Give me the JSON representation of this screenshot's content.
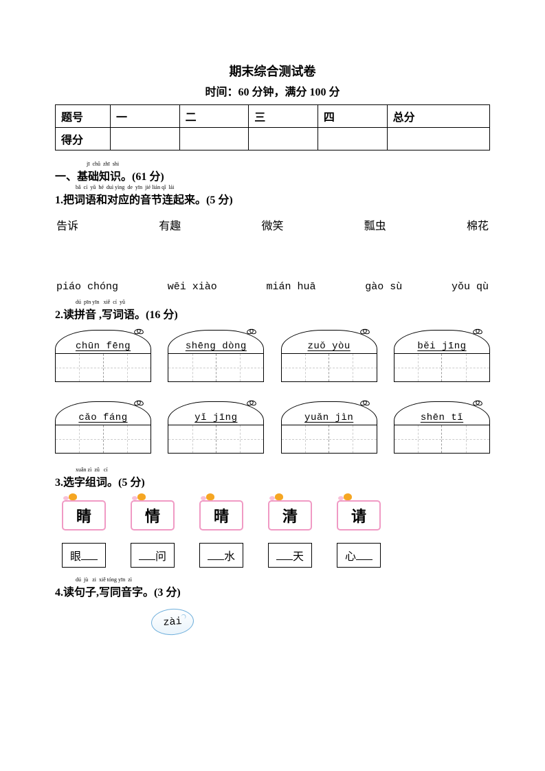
{
  "header": {
    "title": "期末综合测试卷",
    "subtitle_prefix": "时间：",
    "time_value": "60",
    "time_unit": "分钟，满分",
    "total_value": "100",
    "total_unit": "分"
  },
  "score_table": {
    "row1": [
      "题号",
      "一",
      "二",
      "三",
      "四",
      "总分"
    ],
    "row2_label": "得分"
  },
  "section1": {
    "heading_prefix": "一、",
    "heading_text": "基础知识。",
    "heading_points": "(61 分)",
    "heading_pinyin": "       jī  chǔ  zhī  shi"
  },
  "q1": {
    "label": "1.",
    "text": "把词语和对应的音节连起来。",
    "points": "(5 分)",
    "pinyin": "      bǎ  cí  yǔ  hé  duì yìng  de  yīn  jié lián qǐ  lái",
    "words": [
      "告诉",
      "有趣",
      "微笑",
      "瓢虫",
      "棉花"
    ],
    "sounds": [
      "piáo chóng",
      "wēi xiào",
      "mián huā",
      "gào sù",
      "yǒu qù"
    ]
  },
  "q2": {
    "label": "2.",
    "text": "读拼音 ,写词语。",
    "points": "(16 分)",
    "pinyin": "      dú  pīn yīn   xiě  cí  yǔ",
    "row1": [
      "chūn fēng",
      "shēng dòng",
      "zuǒ yòu",
      "běi jīng"
    ],
    "row2": [
      "cǎo  fáng",
      "yǐ  jīng",
      "yuǎn  jìn",
      "shēn  tǐ"
    ]
  },
  "q3": {
    "label": "3.",
    "text": "选字组词。",
    "points": "(5 分)",
    "pinyin": "      xuǎn zì  zǔ   cí",
    "chars": [
      "睛",
      "情",
      "晴",
      "清",
      "请"
    ],
    "answers": [
      {
        "pre": "眼",
        "post": ""
      },
      {
        "pre": "",
        "post": "问"
      },
      {
        "pre": "",
        "post": "水"
      },
      {
        "pre": "",
        "post": "天"
      },
      {
        "pre": "心",
        "post": ""
      }
    ]
  },
  "q4": {
    "label": "4.",
    "text": "读句子,写同音字。",
    "points": "(3 分)",
    "pinyin": "      dú  jù   zi  xiě tóng yīn  zì",
    "oval": "zài"
  },
  "colors": {
    "card_border": "#f09ac4",
    "oval_border": "#6daedb",
    "dec_orange": "#f5a623",
    "dec_pink": "#f8c0d8"
  }
}
